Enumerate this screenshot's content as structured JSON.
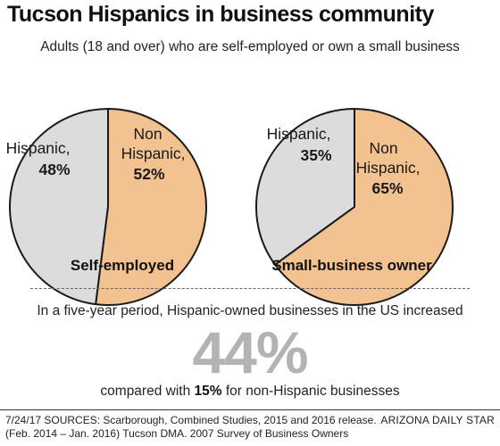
{
  "title": "Tucson Hispanics in business community",
  "subtitle": "Adults (18 and over) who are self-employed or own a small business",
  "colors": {
    "hispanic": "#dcdcdc",
    "non_hispanic": "#f2c291",
    "outline": "#1a1a1a",
    "big_stat": "#b3b3b3"
  },
  "chart_data": [
    {
      "type": "pie",
      "title": "Self-employed",
      "slices": [
        {
          "label_line1": "Hispanic,",
          "label_line2": "",
          "value_label": "48%",
          "value": 48,
          "color": "#dcdcdc"
        },
        {
          "label_line1": "Non",
          "label_line2": "Hispanic,",
          "value_label": "52%",
          "value": 52,
          "color": "#f2c291"
        }
      ]
    },
    {
      "type": "pie",
      "title": "Small-business owner",
      "slices": [
        {
          "label_line1": "Hispanic,",
          "label_line2": "",
          "value_label": "35%",
          "value": 35,
          "color": "#dcdcdc"
        },
        {
          "label_line1": "Non",
          "label_line2": "Hispanic,",
          "value_label": "65%",
          "value": 65,
          "color": "#f2c291"
        }
      ]
    }
  ],
  "stat": {
    "intro": "In a five-year period, Hispanic-owned businesses in the US increased",
    "value": "44%",
    "compare_prefix": "compared with ",
    "compare_value": "15%",
    "compare_suffix": " for non-Hispanic businesses"
  },
  "footer": {
    "sources_line1": "7/24/17  SOURCES: Scarborough, Combined Studies, 2015 and 2016 release.",
    "sources_line2": "(Feb. 2014 – Jan. 2016) Tucson DMA. 2007 Survey of Business Owners",
    "credit": "ARIZONA DAILY STAR"
  }
}
